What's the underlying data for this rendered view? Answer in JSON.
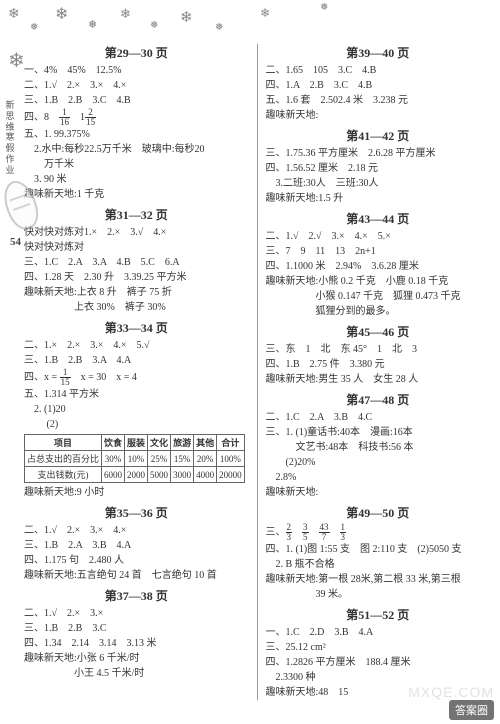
{
  "snowflakes": [
    "❄",
    "❅",
    "❄",
    "❅",
    "❄",
    "❅",
    "❄",
    "❅",
    "❄",
    "❅",
    "❄"
  ],
  "snow_positions": [
    {
      "l": 8,
      "t": 6,
      "s": 14
    },
    {
      "l": 30,
      "t": 22,
      "s": 10
    },
    {
      "l": 55,
      "t": 4,
      "s": 16
    },
    {
      "l": 88,
      "t": 18,
      "s": 11
    },
    {
      "l": 120,
      "t": 6,
      "s": 13
    },
    {
      "l": 150,
      "t": 20,
      "s": 10
    },
    {
      "l": 180,
      "t": 8,
      "s": 15
    },
    {
      "l": 215,
      "t": 22,
      "s": 10
    },
    {
      "l": 260,
      "t": 6,
      "s": 12
    },
    {
      "l": 320,
      "t": 2,
      "s": 10
    },
    {
      "l": 8,
      "t": 48,
      "s": 20
    }
  ],
  "spine": [
    "新",
    "思",
    "维",
    "寒",
    "假",
    "作",
    "业"
  ],
  "page_indicator": "54",
  "watermark": "答案圈",
  "wm_url": "MXQE.COM",
  "left": [
    {
      "hdr": "第29—30 页"
    },
    {
      "t": "一、4%　45%　12.5%"
    },
    {
      "t": "二、1.√　2.×　3.×　4.×"
    },
    {
      "t": "三、1.B　2.B　3.C　4.B"
    },
    {
      "t": "四、8　",
      "frac1": {
        "n": "1",
        "d": "16"
      },
      "mid": "　1",
      "frac2": {
        "n": "2",
        "d": "15"
      }
    },
    {
      "t": "五、1. 99.375%"
    },
    {
      "t": "　2.水中:每秒22.5万千米　玻璃中:每秒20"
    },
    {
      "t": "　　万千米"
    },
    {
      "t": "　3. 90 米"
    },
    {
      "t": "趣味新天地:1 千克"
    },
    {
      "hdr": "第31—32 页"
    },
    {
      "t": "快对快对炼对1.×　2.×　3.√　4.×"
    },
    {
      "t": "快对快对炼对"
    },
    {
      "t": "三、1.C　2.A　3.A　4.B　5.C　6.A"
    },
    {
      "t": "四、1.28 天　2.30 升　3.39.25 平方米"
    },
    {
      "t": "趣味新天地:上衣 8 升　裤子 75 折"
    },
    {
      "t": "　　　　　上衣 30%　裤子 30%"
    },
    {
      "hdr": "第33—34 页"
    },
    {
      "t": "二、1.×　2.×　3.×　4.×　5.√"
    },
    {
      "t": "三、1.B　2.B　3.A　4.A"
    },
    {
      "t": "四、x = ",
      "frac1": {
        "n": "1",
        "d": "15"
      },
      "mid": "　x = 30　x = 4"
    },
    {
      "t": "五、1.314 平方米"
    },
    {
      "t": "　2. (1)20"
    },
    {
      "t": "　　 (2)"
    },
    {
      "table": {
        "cols": [
          "项目",
          "饮食",
          "服装",
          "文化",
          "旅游",
          "其他",
          "合计"
        ],
        "rows": [
          [
            "占总支出的百分比",
            "30%",
            "10%",
            "25%",
            "15%",
            "20%",
            "100%"
          ],
          [
            "支出钱数(元)",
            "6000",
            "2000",
            "5000",
            "3000",
            "4000",
            "20000"
          ]
        ]
      }
    },
    {
      "t": "趣味新天地:9 小时"
    },
    {
      "hdr": "第35—36 页"
    },
    {
      "t": "二、1.√　2.×　3.×　4.×"
    },
    {
      "t": "三、1.B　2.A　3.B　4.A"
    },
    {
      "t": "四、1.175 句　2.480 人"
    },
    {
      "t": "趣味新天地:五言绝句 24 首　七言绝句 10 首"
    },
    {
      "hdr": "第37—38 页"
    },
    {
      "t": "二、1.√　2.×　3.×"
    },
    {
      "t": "三、1.B　2.B　3.C"
    },
    {
      "t": "四、1.34　2.14　3.14　3.13 米"
    },
    {
      "t": "趣味新天地:小张 6 千米/时"
    },
    {
      "t": "　　　　　小王 4.5 千米/时"
    }
  ],
  "right": [
    {
      "hdr": "第39—40 页"
    },
    {
      "t": "二、1.65　105　3.C　4.B"
    },
    {
      "t": "四、1.A　2.B　3.C　4.B"
    },
    {
      "t": "五、1.6 套　2.502.4 米　3.238 元"
    },
    {
      "t": "趣味新天地:"
    },
    {
      "hdr": "第41—42 页"
    },
    {
      "t": "三、1.75.36 平方厘米　2.6.28 平方厘米"
    },
    {
      "t": "四、1.56.52 厘米　2.18 元"
    },
    {
      "t": "　3.二班:30人　三班:30人"
    },
    {
      "t": "趣味新天地:1.5 升"
    },
    {
      "hdr": "第43—44 页"
    },
    {
      "t": "二、1.√　2.√　3.×　4.×　5.×"
    },
    {
      "t": "三、7　9　11　13　2n+1"
    },
    {
      "t": "四、1.1000 米　2.94%　3.6.28 厘米"
    },
    {
      "t": "趣味新天地:小熊 0.2 千克　小鹿 0.18 千克"
    },
    {
      "t": "　　　　　小猴 0.147 千克　狐狸 0.473 千克"
    },
    {
      "t": "　　　　　狐狸分到的最多。"
    },
    {
      "hdr": "第45—46 页"
    },
    {
      "t": "三、东　1　北　东 45°　1　北　3"
    },
    {
      "t": "四、1.B　2.75 件　3.380 元"
    },
    {
      "t": "趣味新天地:男生 35 人　女生 28 人"
    },
    {
      "hdr": "第47—48 页"
    },
    {
      "t": "二、1.C　2.A　3.B　4.C"
    },
    {
      "t": "三、1. (1)童话书:40本　漫画:16本"
    },
    {
      "t": "　　　文艺书:48本　科技书:56 本"
    },
    {
      "t": "　　(2)20%"
    },
    {
      "t": "　2.8%"
    },
    {
      "t": "趣味新天地:"
    },
    {
      "hdr": "第49—50 页"
    },
    {
      "t": "三、",
      "frac1": {
        "n": "2",
        "d": "3"
      },
      "mid": "　",
      "frac2": {
        "n": "3",
        "d": "5"
      },
      "mid2": "　",
      "frac3": {
        "n": "43",
        "d": "7"
      },
      "mid3": "　",
      "frac4": {
        "n": "1",
        "d": "3"
      }
    },
    {
      "t": "四、1. (1)图 1:55 支　图 2:110 支　(2)5050 支"
    },
    {
      "t": "　2. B 瓶不合格"
    },
    {
      "t": "趣味新天地:第一根 28米,第二根 33 米,第三根"
    },
    {
      "t": "　　　　　39 米。"
    },
    {
      "hdr": "第51—52 页"
    },
    {
      "t": "一、1.C　2.D　3.B　4.A"
    },
    {
      "t": "三、25.12 cm²"
    },
    {
      "t": "四、1.2826 平方厘米　188.4 厘米"
    },
    {
      "t": "　2.3300 种"
    },
    {
      "t": "趣味新天地:48　15"
    }
  ]
}
